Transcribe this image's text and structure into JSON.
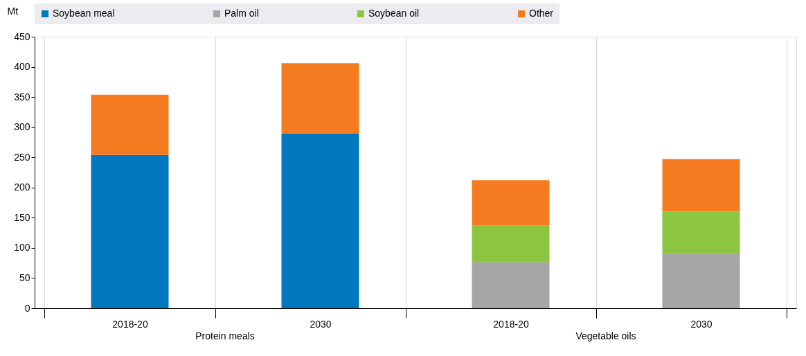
{
  "chart_data": {
    "type": "bar",
    "stacked": true,
    "ylabel": "Mt",
    "categories": [
      "2018-20",
      "2030",
      "2018-20",
      "2030"
    ],
    "series": [
      {
        "name": "Soybean meal",
        "color": "#0077bf",
        "values": [
          254,
          290,
          null,
          null
        ]
      },
      {
        "name": "Palm oil",
        "color": "#a5a5a5",
        "values": [
          null,
          null,
          76,
          91
        ]
      },
      {
        "name": "Soybean oil",
        "color": "#8cc641",
        "values": [
          null,
          null,
          61,
          69
        ]
      },
      {
        "name": "Other",
        "color": "#f47b20",
        "values": [
          100,
          116,
          75,
          87
        ]
      }
    ],
    "annotations": [
      "Protein meals",
      "Vegetable oils"
    ],
    "ylim": [
      0,
      450
    ],
    "yticks": [
      0,
      50,
      100,
      150,
      200,
      250,
      300,
      350,
      400,
      450
    ],
    "grid": "x",
    "legend": "top"
  }
}
